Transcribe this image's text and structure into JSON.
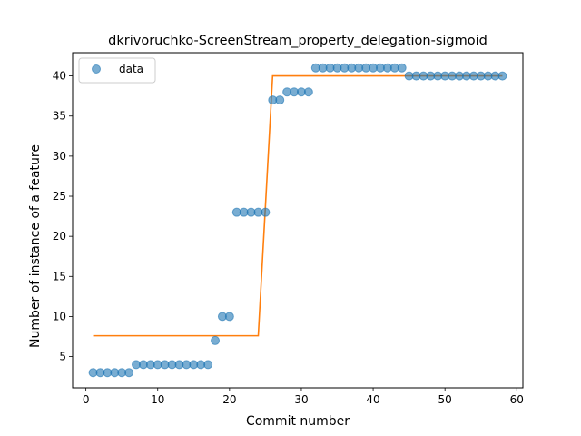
{
  "chart_data": {
    "type": "scatter",
    "title": "dkrivoruchko-ScreenStream_property_delegation-sigmoid",
    "xlabel": "Commit number",
    "ylabel": "Number of instance of a feature",
    "xlim": [
      -1.85,
      60.85
    ],
    "ylim": [
      1.1,
      42.9
    ],
    "xticks": [
      0,
      10,
      20,
      30,
      40,
      50,
      60
    ],
    "yticks": [
      5,
      10,
      15,
      20,
      25,
      30,
      35,
      40
    ],
    "legend": {
      "placement": "top-left",
      "entries": [
        "data"
      ]
    },
    "grid": false,
    "colors": {
      "data": "#1f77b4",
      "fit": "#ff7f0e"
    },
    "series": [
      {
        "name": "data",
        "kind": "scatter",
        "x": [
          1,
          2,
          3,
          4,
          5,
          6,
          7,
          8,
          9,
          10,
          11,
          12,
          13,
          14,
          15,
          16,
          17,
          18,
          19,
          20,
          21,
          22,
          23,
          24,
          25,
          26,
          27,
          28,
          29,
          30,
          31,
          32,
          33,
          34,
          35,
          36,
          37,
          38,
          39,
          40,
          41,
          42,
          43,
          44,
          45,
          46,
          47,
          48,
          49,
          50,
          51,
          52,
          53,
          54,
          55,
          56,
          57,
          58
        ],
        "y": [
          3,
          3,
          3,
          3,
          3,
          3,
          4,
          4,
          4,
          4,
          4,
          4,
          4,
          4,
          4,
          4,
          4,
          7,
          10,
          10,
          23,
          23,
          23,
          23,
          23,
          37,
          37,
          38,
          38,
          38,
          38,
          41,
          41,
          41,
          41,
          41,
          41,
          41,
          41,
          41,
          41,
          41,
          41,
          41,
          40,
          40,
          40,
          40,
          40,
          40,
          40,
          40,
          40,
          40,
          40,
          40,
          40,
          40
        ]
      },
      {
        "kind": "line",
        "x": [
          1,
          24,
          26,
          58
        ],
        "y": [
          7.6,
          7.6,
          40,
          40
        ]
      }
    ]
  }
}
